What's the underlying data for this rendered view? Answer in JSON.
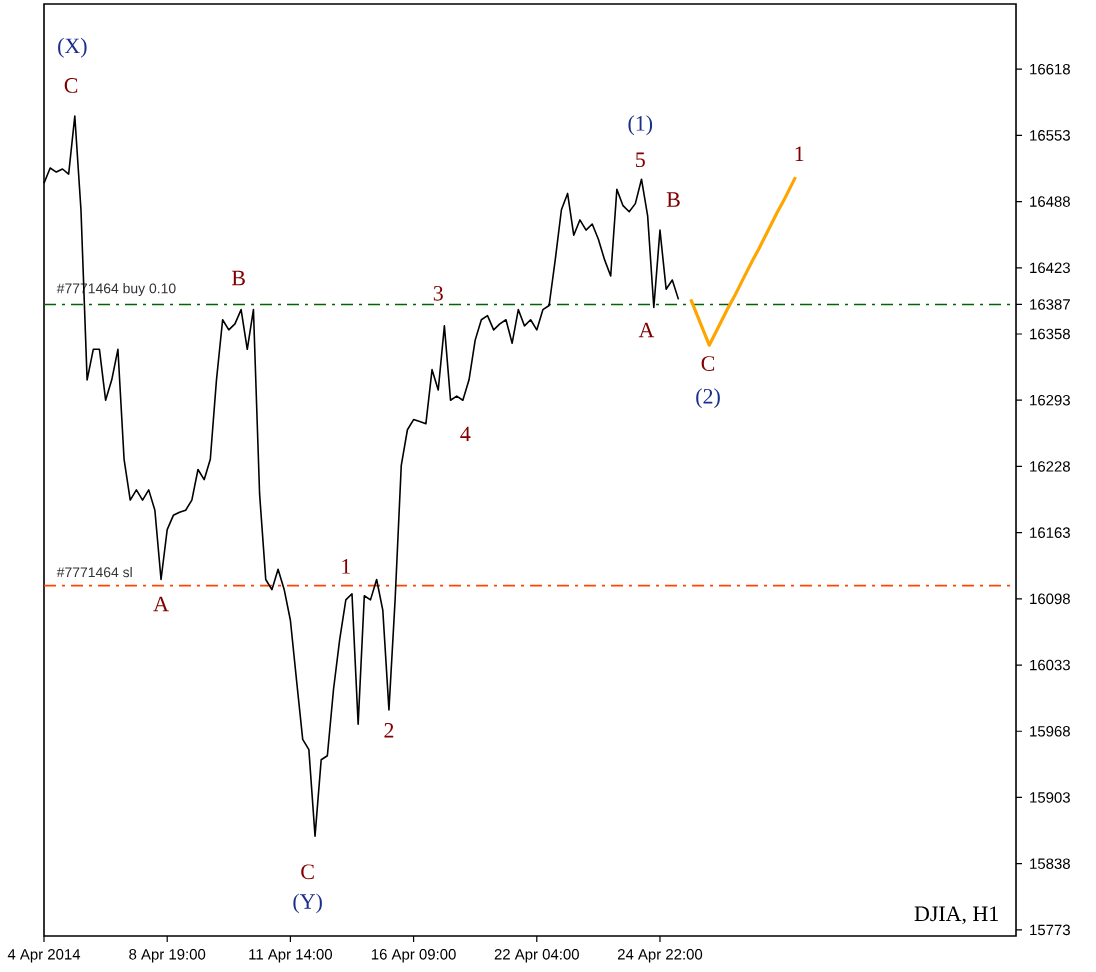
{
  "chart_data": {
    "type": "line",
    "ylim": [
      15767,
      16682
    ],
    "categories": [
      "4 Apr 2014",
      null,
      null,
      null,
      null,
      null,
      null,
      null,
      null,
      null,
      null,
      null,
      null,
      null,
      null,
      null,
      null,
      null,
      null,
      null,
      "8 Apr 19:00",
      null,
      null,
      null,
      null,
      null,
      null,
      null,
      null,
      null,
      null,
      null,
      null,
      null,
      null,
      null,
      null,
      null,
      null,
      null,
      "11 Apr 14:00",
      null,
      null,
      null,
      null,
      null,
      null,
      null,
      null,
      null,
      null,
      null,
      null,
      null,
      null,
      null,
      null,
      null,
      null,
      null,
      "16 Apr 09:00",
      null,
      null,
      null,
      null,
      null,
      null,
      null,
      null,
      null,
      null,
      null,
      null,
      null,
      null,
      null,
      null,
      null,
      null,
      null,
      "22 Apr 04:00",
      null,
      null,
      null,
      null,
      null,
      null,
      null,
      null,
      null,
      null,
      null,
      null,
      null,
      null,
      null,
      null,
      null,
      null,
      null,
      "24 Apr 22:00",
      null,
      null,
      null,
      null,
      null,
      null,
      null,
      null,
      null,
      null,
      null,
      null,
      null,
      null,
      null,
      null,
      null,
      null,
      null,
      null,
      null,
      null,
      null,
      null,
      null,
      null,
      null,
      null,
      null,
      null,
      null,
      null,
      null,
      null,
      null,
      null,
      null,
      null,
      null,
      null,
      null,
      null,
      null,
      null,
      null,
      null,
      null,
      null,
      null,
      null,
      null,
      null,
      null,
      null,
      null,
      null,
      null
    ],
    "yticks": [
      15773,
      15838,
      15903,
      15968,
      16033,
      16098,
      16163,
      16228,
      16293,
      16358,
      16387,
      16423,
      16488,
      16553,
      16618
    ],
    "series": [
      {
        "color": "#000000",
        "values": [
          16506,
          16521,
          16517,
          16520,
          16515,
          16572,
          16480,
          16313,
          16343,
          16343,
          16293,
          16313,
          16343,
          16235,
          16195,
          16205,
          16195,
          16205,
          16185,
          16117,
          16166,
          16180,
          16183,
          16185,
          16195,
          16225,
          16215,
          16235,
          16313,
          16372,
          16362,
          16368,
          16382,
          16343,
          16382,
          16201,
          16117,
          16107,
          16127,
          16107,
          16077,
          16018,
          15960,
          15950,
          15865,
          15940,
          15944,
          16009,
          16058,
          16097,
          16103,
          15975,
          16101,
          16097,
          16117,
          16087,
          15989,
          16097,
          16229,
          16264,
          16274,
          16272,
          16270,
          16323,
          16303,
          16366,
          16293,
          16297,
          16293,
          16313,
          16352,
          16372,
          16376,
          16362,
          16368,
          16372,
          16349,
          16382,
          16366,
          16372,
          16362,
          16382,
          16386,
          16431,
          16480,
          16496,
          16455,
          16470,
          16460,
          16466,
          16451,
          16431,
          16415,
          16500,
          16484,
          16478,
          16486,
          16510,
          16474,
          16384,
          16460,
          16402,
          16411,
          16392,
          null,
          null,
          null,
          null,
          null,
          null,
          null,
          null,
          null,
          null,
          null,
          null,
          null,
          null,
          null,
          null,
          null,
          null,
          null,
          null,
          null,
          null,
          null,
          null,
          null,
          null,
          null,
          null,
          null,
          null,
          null,
          null,
          null,
          null,
          null,
          null,
          null,
          null,
          null,
          null,
          null,
          null,
          null,
          null,
          null,
          null,
          null,
          null,
          null,
          null,
          null,
          null,
          null,
          null
        ]
      },
      {
        "color": "#ffa500",
        "values": [
          null,
          null,
          null,
          null,
          null,
          null,
          null,
          null,
          null,
          null,
          null,
          null,
          null,
          null,
          null,
          null,
          null,
          null,
          null,
          null,
          null,
          null,
          null,
          null,
          null,
          null,
          null,
          null,
          null,
          null,
          null,
          null,
          null,
          null,
          null,
          null,
          null,
          null,
          null,
          null,
          null,
          null,
          null,
          null,
          null,
          null,
          null,
          null,
          null,
          null,
          null,
          null,
          null,
          null,
          null,
          null,
          null,
          null,
          null,
          null,
          null,
          null,
          null,
          null,
          null,
          null,
          null,
          null,
          null,
          null,
          null,
          null,
          null,
          null,
          null,
          null,
          null,
          null,
          null,
          null,
          null,
          null,
          null,
          null,
          null,
          null,
          null,
          null,
          null,
          null,
          null,
          null,
          null,
          null,
          null,
          null,
          null,
          null,
          null,
          null,
          null,
          null,
          null,
          null,
          null,
          16392,
          16377,
          16362,
          16347,
          16359,
          16371,
          16383,
          16394,
          16406,
          16418,
          16430,
          16441,
          16453,
          16465,
          16477,
          16488,
          16500,
          16512,
          null,
          null,
          null,
          null,
          null,
          null,
          null,
          null,
          null,
          null,
          null,
          null,
          null,
          null,
          null,
          null,
          null,
          null,
          null,
          null,
          null,
          null,
          null,
          null,
          null,
          null,
          null,
          null,
          null,
          null,
          null,
          null,
          null,
          null,
          null
        ]
      }
    ],
    "ref_lines": [
      {
        "axis": "y",
        "value": 16387,
        "label": "#7771464 buy 0.10",
        "color": "#006400",
        "line_style": "dashdot"
      },
      {
        "axis": "y",
        "value": 16111,
        "label": "#7771464 sl",
        "color": "#ff4500",
        "line_style": "dashdot"
      }
    ],
    "annotations": [
      "(X)",
      "C",
      "B",
      "A",
      "1",
      "2",
      "C",
      "(Y)",
      "3",
      "4",
      "5",
      "(1)",
      "B",
      "A",
      "C",
      "(2)",
      "1",
      "DJIA, H1"
    ]
  }
}
